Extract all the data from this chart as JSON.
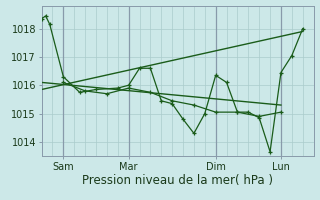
{
  "title": "",
  "xlabel": "Pression niveau de la mer( hPa )",
  "ylabel": "",
  "bg_color": "#cce8e8",
  "grid_color": "#aacccc",
  "line_color": "#1a5c1a",
  "ylim": [
    1013.5,
    1018.8
  ],
  "xlim": [
    0,
    100
  ],
  "xtick_positions": [
    8,
    32,
    64,
    88
  ],
  "xtick_labels": [
    "Sam",
    "Mar",
    "Dim",
    "Lun"
  ],
  "ytick_positions": [
    1014,
    1015,
    1016,
    1017,
    1018
  ],
  "ytick_labels": [
    "1014",
    "1015",
    "1016",
    "1017",
    "1018"
  ],
  "series1_x": [
    0,
    1.5,
    3,
    8,
    14,
    20,
    28,
    32,
    36,
    40,
    44,
    48,
    52,
    56,
    60,
    64,
    68,
    72,
    76,
    80,
    84,
    88,
    92,
    96
  ],
  "series1_y": [
    1018.35,
    1018.45,
    1018.15,
    1016.3,
    1015.75,
    1015.85,
    1015.9,
    1016.0,
    1016.6,
    1016.6,
    1015.45,
    1015.35,
    1014.8,
    1014.3,
    1015.0,
    1016.35,
    1016.1,
    1015.05,
    1015.05,
    1014.85,
    1013.65,
    1016.45,
    1017.05,
    1018.0
  ],
  "trend1_x": [
    0,
    96
  ],
  "trend1_y": [
    1015.85,
    1017.9
  ],
  "trend2_x": [
    0,
    88
  ],
  "trend2_y": [
    1016.1,
    1015.3
  ],
  "series2_x": [
    8,
    16,
    24,
    32,
    40,
    48,
    56,
    64,
    72,
    80,
    88
  ],
  "series2_y": [
    1016.1,
    1015.8,
    1015.7,
    1015.9,
    1015.75,
    1015.45,
    1015.3,
    1015.05,
    1015.05,
    1014.9,
    1015.05
  ],
  "vline_positions": [
    8,
    32,
    64,
    88
  ],
  "fontsize_xlabel": 8.5,
  "fontsize_ticks": 7
}
